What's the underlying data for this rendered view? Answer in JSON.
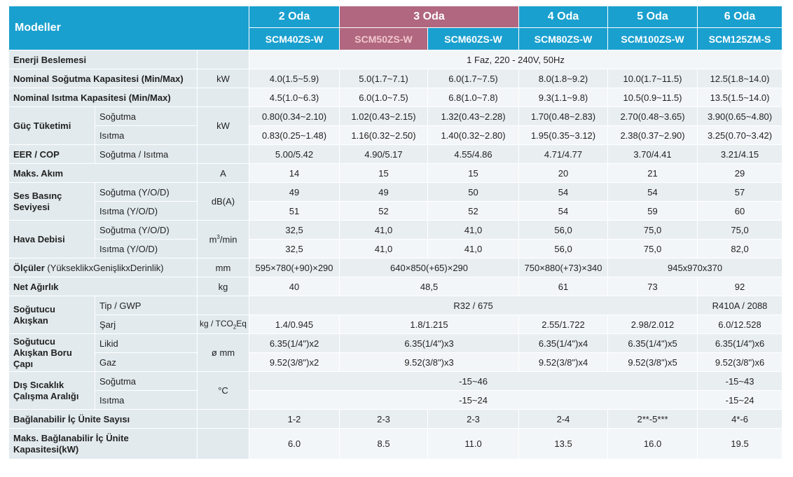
{
  "header": {
    "models_label": "Modeller",
    "rooms": [
      "2 Oda",
      "3 Oda",
      "4 Oda",
      "5 Oda",
      "6 Oda"
    ],
    "codes": [
      "SCM40ZS-W",
      "SCM50ZS-W",
      "SCM60ZS-W",
      "SCM80ZS-W",
      "SCM100ZS-W",
      "SCM125ZM-S"
    ],
    "highlight_color": "#b0677f",
    "header_color": "#1aa0cf"
  },
  "rows": {
    "power_supply": {
      "label": "Enerji Beslemesi",
      "value": "1 Faz, 220 - 240V, 50Hz"
    },
    "cool_cap": {
      "label": "Nominal Soğutma Kapasitesi (Min/Max)",
      "unit": "kW",
      "values": [
        "4.0(1.5~5.9)",
        "5.0(1.7~7.1)",
        "6.0(1.7~7.5)",
        "8.0(1.8~9.2)",
        "10.0(1.7~11.5)",
        "12.5(1.8~14.0)"
      ]
    },
    "heat_cap": {
      "label": "Nominal Isıtma Kapasitesi (Min/Max)",
      "values": [
        "4.5(1.0~6.3)",
        "6.0(1.0~7.5)",
        "6.8(1.0~7.8)",
        "9.3(1.1~9.8)",
        "10.5(0.9~11.5)",
        "13.5(1.5~14.0)"
      ]
    },
    "power": {
      "label": "Güç Tüketimi",
      "unit": "kW",
      "cool_label": "Soğutma",
      "cool": [
        "0.80(0.34~2.10)",
        "1.02(0.43~2.15)",
        "1.32(0.43~2.28)",
        "1.70(0.48~2.83)",
        "2.70(0.48~3.65)",
        "3.90(0.65~4.80)"
      ],
      "heat_label": "Isıtma",
      "heat": [
        "0.83(0.25~1.48)",
        "1.16(0.32~2.50)",
        "1.40(0.32~2.80)",
        "1.95(0.35~3.12)",
        "2.38(0.37~2.90)",
        "3.25(0.70~3.42)"
      ]
    },
    "eer": {
      "label": "EER /  COP",
      "sub": "Soğutma / Isıtma",
      "values": [
        "5.00/5.42",
        "4.90/5.17",
        "4.55/4.86",
        "4.71/4.77",
        "3.70/4.41",
        "3.21/4.15"
      ]
    },
    "current": {
      "label": "Maks. Akım",
      "unit": "A",
      "values": [
        "14",
        "15",
        "15",
        "20",
        "21",
        "29"
      ]
    },
    "noise": {
      "label": "Ses Basınç Seviyesi",
      "unit": "dB(A)",
      "cool_label": "Soğutma (Y/O/D)",
      "cool": [
        "49",
        "49",
        "50",
        "54",
        "54",
        "57"
      ],
      "heat_label": "Isıtma (Y/O/D)",
      "heat": [
        "51",
        "52",
        "52",
        "54",
        "59",
        "60"
      ]
    },
    "airflow": {
      "label": "Hava Debisi",
      "unit": "m",
      "unit_sup": "3",
      "unit_tail": "/min",
      "cool_label": "Soğutma (Y/O/D)",
      "cool": [
        "32,5",
        "41,0",
        "41,0",
        "56,0",
        "75,0",
        "75,0"
      ],
      "heat_label": "Isıtma (Y/O/D)",
      "heat": [
        "32,5",
        "41,0",
        "41,0",
        "56,0",
        "75,0",
        "82,0"
      ]
    },
    "dims": {
      "label": "Ölçüler",
      "sub": "(YükseklikxGenişlikxDerinlik)",
      "unit": "mm",
      "v1": "595×780(+90)×290",
      "v23": "640×850(+65)×290",
      "v4": "750×880(+73)×340",
      "v56": "945x970x370"
    },
    "weight": {
      "label": "Net Ağırlık",
      "unit": "kg",
      "v1": "40",
      "v23": "48,5",
      "v4": "61",
      "v5": "73",
      "v6": "92"
    },
    "refrigerant": {
      "label": "Soğutucu Akışkan",
      "type_label": "Tip / GWP",
      "type_v15": "R32 / 675",
      "type_v6": "R410A / 2088",
      "charge_label": "Şarj",
      "charge_unit": "kg / TCO",
      "charge_unit_sub": "2",
      "charge_unit_tail": "Eq",
      "charge_v1": "1.4/0.945",
      "charge_v23": "1.8/1.215",
      "charge_v4": "2.55/1.722",
      "charge_v5": "2.98/2.012",
      "charge_v6": "6.0/12.528"
    },
    "pipe": {
      "label": "Soğutucu Akışkan Boru Çapı",
      "unit": "ø mm",
      "liquid_label": "Likid",
      "liquid_v1": "6.35(1/4\")x2",
      "liquid_v23": "6.35(1/4\")x3",
      "liquid_v4": "6.35(1/4\")x4",
      "liquid_v5": "6.35(1/4\")x5",
      "liquid_v6": "6.35(1/4\")x6",
      "gas_label": "Gaz",
      "gas_v1": "9.52(3/8\")x2",
      "gas_v23": "9.52(3/8\")x3",
      "gas_v4": "9.52(3/8\")x4",
      "gas_v5": "9.52(3/8\")x5",
      "gas_v6": "9.52(3/8\")x6"
    },
    "ambient": {
      "label": "Dış Sıcaklık Çalışma Aralığı",
      "unit": "°C",
      "cool_label": "Soğutma",
      "cool_v15": "-15~46",
      "cool_v6": "-15~43",
      "heat_label": "Isıtma",
      "heat_v15": "-15~24",
      "heat_v6": "-15~24"
    },
    "indoor_count": {
      "label": "Bağlanabilir İç Ünite Sayısı",
      "values": [
        "1-2",
        "2-3",
        "2-3",
        "2-4",
        "2**-5***",
        "4*-6"
      ]
    },
    "indoor_cap": {
      "label": "Maks. Bağlanabilir İç Ünite Kapasitesi(kW)",
      "values": [
        "6.0",
        "8.5",
        "11.0",
        "13.5",
        "16.0",
        "19.5"
      ]
    }
  }
}
